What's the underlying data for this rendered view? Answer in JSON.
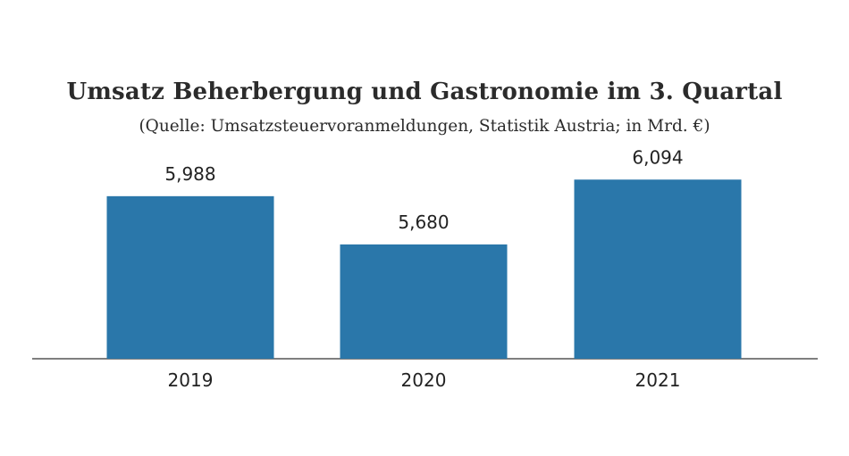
{
  "chart_data": {
    "type": "bar",
    "title": "Umsatz Beherbergung und Gastronomie im 3. Quartal",
    "subtitle": "(Quelle: Umsatzsteuervoranmeldungen, Statistik Austria; in Mrd. €)",
    "categories": [
      "2019",
      "2020",
      "2021"
    ],
    "values": [
      5.988,
      5.68,
      6.094
    ],
    "value_labels": [
      "5,988",
      "5,680",
      "6,094"
    ],
    "xlabel": "",
    "ylabel": "",
    "grid": false,
    "legend": "none",
    "bar_color": "#2a77aa",
    "axis_color": "#555555"
  }
}
